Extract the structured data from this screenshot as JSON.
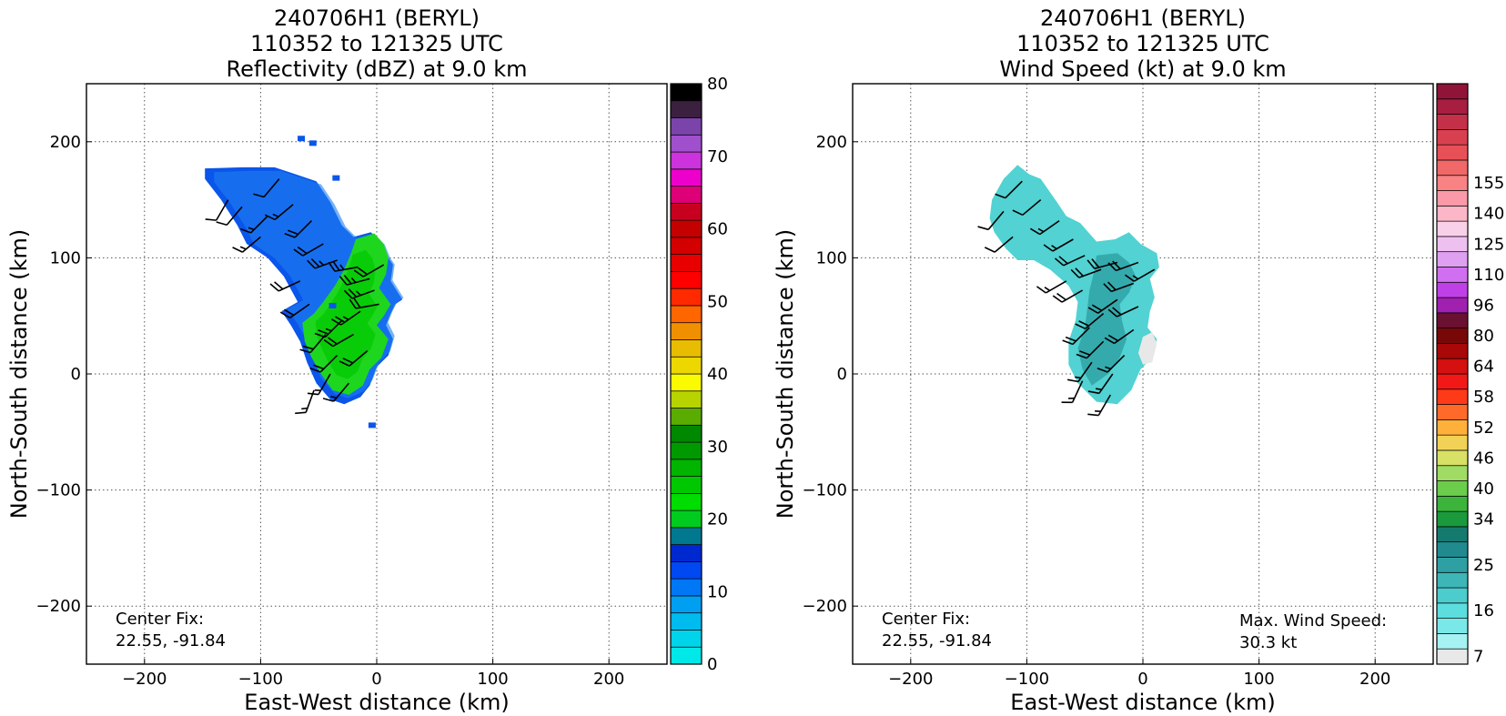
{
  "chart_data": [
    {
      "type": "heatmap",
      "title": [
        "240706H1 (BERYL)",
        "110352 to 121325 UTC",
        "Reflectivity (dBZ) at 9.0 km"
      ],
      "xlabel": "East-West distance (km)",
      "ylabel": "North-South distance (km)",
      "xlim": [
        -250,
        250
      ],
      "ylim": [
        -250,
        250
      ],
      "xticks": [
        -200,
        -100,
        0,
        100,
        200
      ],
      "yticks": [
        -200,
        -100,
        0,
        100,
        200
      ],
      "xtick_labels": [
        "−200",
        "−100",
        "0",
        "100",
        "200"
      ],
      "ytick_labels": [
        "−200",
        "−100",
        "0",
        "100",
        "200"
      ],
      "grid": true,
      "annotation_left": [
        "Center Fix:",
        "22.55, -91.84"
      ],
      "colorbar": {
        "min": 0,
        "max": 80,
        "tick_values": [
          0,
          10,
          20,
          30,
          40,
          50,
          60,
          70,
          80
        ],
        "tick_labels": [
          "0",
          "10",
          "20",
          "30",
          "40",
          "50",
          "60",
          "70",
          "80"
        ],
        "colors": [
          "#00e8e8",
          "#00d4ea",
          "#00bbee",
          "#009ff2",
          "#0077f4",
          "#0048f2",
          "#0028d0",
          "#007890",
          "#00cc20",
          "#00dd00",
          "#00c800",
          "#00b400",
          "#009a00",
          "#008800",
          "#5aac00",
          "#b8d400",
          "#fafa00",
          "#ecd800",
          "#e8bc00",
          "#f09000",
          "#ff6600",
          "#ff2a00",
          "#ff0000",
          "#e80000",
          "#d40000",
          "#c40000",
          "#c80020",
          "#dd0077",
          "#ee00cc",
          "#cc33dd",
          "#a050cc",
          "#7a44aa",
          "#3c2040",
          "#000000"
        ]
      },
      "echo_region": [
        [
          -148,
          177
        ],
        [
          -115,
          178
        ],
        [
          -88,
          178
        ],
        [
          -70,
          172
        ],
        [
          -52,
          166
        ],
        [
          -40,
          148
        ],
        [
          -30,
          128
        ],
        [
          -20,
          118
        ],
        [
          -5,
          122
        ],
        [
          5,
          112
        ],
        [
          10,
          100
        ],
        [
          14,
          94
        ],
        [
          12,
          80
        ],
        [
          22,
          64
        ],
        [
          16,
          60
        ],
        [
          12,
          52
        ],
        [
          8,
          42
        ],
        [
          14,
          30
        ],
        [
          10,
          16
        ],
        [
          0,
          6
        ],
        [
          -6,
          -10
        ],
        [
          -14,
          -20
        ],
        [
          -28,
          -26
        ],
        [
          -40,
          -22
        ],
        [
          -52,
          -8
        ],
        [
          -60,
          10
        ],
        [
          -66,
          28
        ],
        [
          -74,
          42
        ],
        [
          -82,
          54
        ],
        [
          -68,
          62
        ],
        [
          -80,
          84
        ],
        [
          -94,
          100
        ],
        [
          -112,
          112
        ],
        [
          -120,
          128
        ],
        [
          -134,
          150
        ],
        [
          -148,
          168
        ]
      ],
      "green_region": [
        [
          -18,
          116
        ],
        [
          -2,
          121
        ],
        [
          6,
          112
        ],
        [
          10,
          100
        ],
        [
          8,
          86
        ],
        [
          2,
          74
        ],
        [
          12,
          60
        ],
        [
          6,
          50
        ],
        [
          0,
          42
        ],
        [
          10,
          30
        ],
        [
          4,
          14
        ],
        [
          -6,
          4
        ],
        [
          -12,
          -10
        ],
        [
          -24,
          -18
        ],
        [
          -38,
          -14
        ],
        [
          -48,
          0
        ],
        [
          -56,
          14
        ],
        [
          -62,
          28
        ],
        [
          -64,
          44
        ],
        [
          -54,
          52
        ],
        [
          -46,
          62
        ],
        [
          -36,
          76
        ],
        [
          -28,
          90
        ],
        [
          -22,
          104
        ]
      ],
      "barbs": [
        [
          -84,
          168,
          220,
          10
        ],
        [
          -72,
          146,
          230,
          15
        ],
        [
          -56,
          132,
          225,
          20
        ],
        [
          -46,
          112,
          240,
          20
        ],
        [
          -34,
          98,
          250,
          25
        ],
        [
          -16,
          92,
          260,
          25
        ],
        [
          -6,
          82,
          255,
          25
        ],
        [
          6,
          94,
          240,
          20
        ],
        [
          -2,
          72,
          250,
          25
        ],
        [
          -14,
          54,
          235,
          25
        ],
        [
          -30,
          46,
          225,
          25
        ],
        [
          -44,
          34,
          220,
          20
        ],
        [
          -34,
          16,
          225,
          20
        ],
        [
          -40,
          0,
          210,
          15
        ],
        [
          -54,
          -14,
          200,
          15
        ],
        [
          -24,
          -8,
          220,
          15
        ],
        [
          -8,
          20,
          230,
          20
        ],
        [
          -20,
          34,
          240,
          20
        ],
        [
          -58,
          60,
          235,
          20
        ],
        [
          -100,
          118,
          230,
          15
        ],
        [
          -116,
          144,
          220,
          10
        ],
        [
          -128,
          150,
          210,
          10
        ],
        [
          2,
          60,
          260,
          20
        ],
        [
          -66,
          80,
          245,
          20
        ],
        [
          -94,
          136,
          225,
          15
        ]
      ],
      "speckles": [
        [
          -65,
          202
        ],
        [
          -55,
          198
        ],
        [
          -35,
          168
        ],
        [
          -4,
          -45
        ],
        [
          -38,
          58
        ]
      ]
    },
    {
      "type": "heatmap",
      "title": [
        "240706H1 (BERYL)",
        "110352 to 121325 UTC",
        "Wind Speed (kt) at 9.0 km"
      ],
      "xlabel": "East-West distance (km)",
      "ylabel": "North-South distance (km)",
      "xlim": [
        -250,
        250
      ],
      "ylim": [
        -250,
        250
      ],
      "xticks": [
        -200,
        -100,
        0,
        100,
        200
      ],
      "yticks": [
        -200,
        -100,
        0,
        100,
        200
      ],
      "xtick_labels": [
        "−200",
        "−100",
        "0",
        "100",
        "200"
      ],
      "ytick_labels": [
        "−200",
        "−100",
        "0",
        "100",
        "200"
      ],
      "grid": true,
      "annotation_left": [
        "Center Fix:",
        "22.55, -91.84"
      ],
      "annotation_right": [
        "Max. Wind Speed:",
        "30.3 kt"
      ],
      "max_wind_speed_kt": 30.3,
      "colorbar": {
        "tick_labels": [
          "7",
          "16",
          "25",
          "34",
          "40",
          "46",
          "52",
          "58",
          "64",
          "80",
          "96",
          "110",
          "125",
          "140",
          "155"
        ],
        "tick_segment_index": [
          0,
          3,
          6,
          9,
          11,
          13,
          15,
          17,
          19,
          21,
          23,
          25,
          27,
          29,
          31
        ],
        "colors": [
          "#e8e8e8",
          "#a6f2f2",
          "#7ae8e8",
          "#5cdede",
          "#4ccccc",
          "#3eb6b8",
          "#2ea0a4",
          "#208a8e",
          "#157a6e",
          "#1a9a3c",
          "#3cb43c",
          "#6ccc4c",
          "#a0dc64",
          "#d8e066",
          "#f2d256",
          "#ffb03a",
          "#ff6a2a",
          "#ff3a18",
          "#f21818",
          "#d41010",
          "#a80808",
          "#780808",
          "#6a1030",
          "#a020b0",
          "#c040e8",
          "#d070f0",
          "#e0a0f2",
          "#eec0f0",
          "#f8d0e8",
          "#fbb6c8",
          "#fa9aa8",
          "#f88284",
          "#f06868",
          "#e85058",
          "#d84050",
          "#c43048",
          "#a81e40",
          "#901438"
        ]
      },
      "region": [
        [
          -130,
          150
        ],
        [
          -120,
          168
        ],
        [
          -108,
          180
        ],
        [
          -98,
          172
        ],
        [
          -88,
          168
        ],
        [
          -74,
          148
        ],
        [
          -66,
          136
        ],
        [
          -54,
          130
        ],
        [
          -40,
          114
        ],
        [
          -24,
          116
        ],
        [
          -12,
          122
        ],
        [
          -2,
          112
        ],
        [
          12,
          104
        ],
        [
          14,
          92
        ],
        [
          6,
          82
        ],
        [
          10,
          66
        ],
        [
          6,
          54
        ],
        [
          4,
          40
        ],
        [
          12,
          30
        ],
        [
          8,
          14
        ],
        [
          -2,
          4
        ],
        [
          -10,
          -14
        ],
        [
          -22,
          -26
        ],
        [
          -40,
          -24
        ],
        [
          -56,
          -8
        ],
        [
          -64,
          8
        ],
        [
          -64,
          28
        ],
        [
          -58,
          46
        ],
        [
          -56,
          62
        ],
        [
          -64,
          76
        ],
        [
          -80,
          90
        ],
        [
          -94,
          98
        ],
        [
          -108,
          98
        ],
        [
          -118,
          108
        ],
        [
          -128,
          122
        ],
        [
          -132,
          134
        ]
      ],
      "dark_region": [
        [
          -40,
          102
        ],
        [
          -22,
          104
        ],
        [
          -12,
          96
        ],
        [
          -6,
          84
        ],
        [
          -12,
          70
        ],
        [
          -20,
          60
        ],
        [
          -18,
          46
        ],
        [
          -14,
          30
        ],
        [
          -20,
          14
        ],
        [
          -30,
          0
        ],
        [
          -44,
          -10
        ],
        [
          -52,
          4
        ],
        [
          -56,
          22
        ],
        [
          -50,
          40
        ],
        [
          -48,
          56
        ],
        [
          -46,
          72
        ],
        [
          -42,
          88
        ]
      ],
      "light_region": [
        [
          8,
          10
        ],
        [
          12,
          26
        ],
        [
          8,
          36
        ],
        [
          0,
          32
        ],
        [
          -4,
          18
        ],
        [
          0,
          8
        ]
      ],
      "barbs": [
        [
          -104,
          166,
          225,
          10
        ],
        [
          -88,
          150,
          230,
          10
        ],
        [
          -72,
          132,
          235,
          15
        ],
        [
          -60,
          116,
          240,
          15
        ],
        [
          -50,
          102,
          245,
          20
        ],
        [
          -36,
          90,
          250,
          20
        ],
        [
          -22,
          96,
          255,
          20
        ],
        [
          -4,
          96,
          250,
          20
        ],
        [
          10,
          90,
          240,
          15
        ],
        [
          -8,
          78,
          250,
          20
        ],
        [
          -22,
          64,
          235,
          20
        ],
        [
          -34,
          52,
          230,
          20
        ],
        [
          -46,
          40,
          225,
          20
        ],
        [
          -34,
          28,
          225,
          20
        ],
        [
          -44,
          10,
          215,
          15
        ],
        [
          -52,
          -6,
          205,
          15
        ],
        [
          -26,
          0,
          215,
          15
        ],
        [
          -16,
          16,
          225,
          15
        ],
        [
          -8,
          38,
          235,
          20
        ],
        [
          -4,
          58,
          245,
          20
        ],
        [
          -120,
          140,
          220,
          10
        ],
        [
          -66,
          80,
          240,
          15
        ],
        [
          -112,
          118,
          230,
          10
        ],
        [
          -52,
          72,
          240,
          20
        ],
        [
          -28,
          -18,
          210,
          15
        ]
      ]
    }
  ]
}
